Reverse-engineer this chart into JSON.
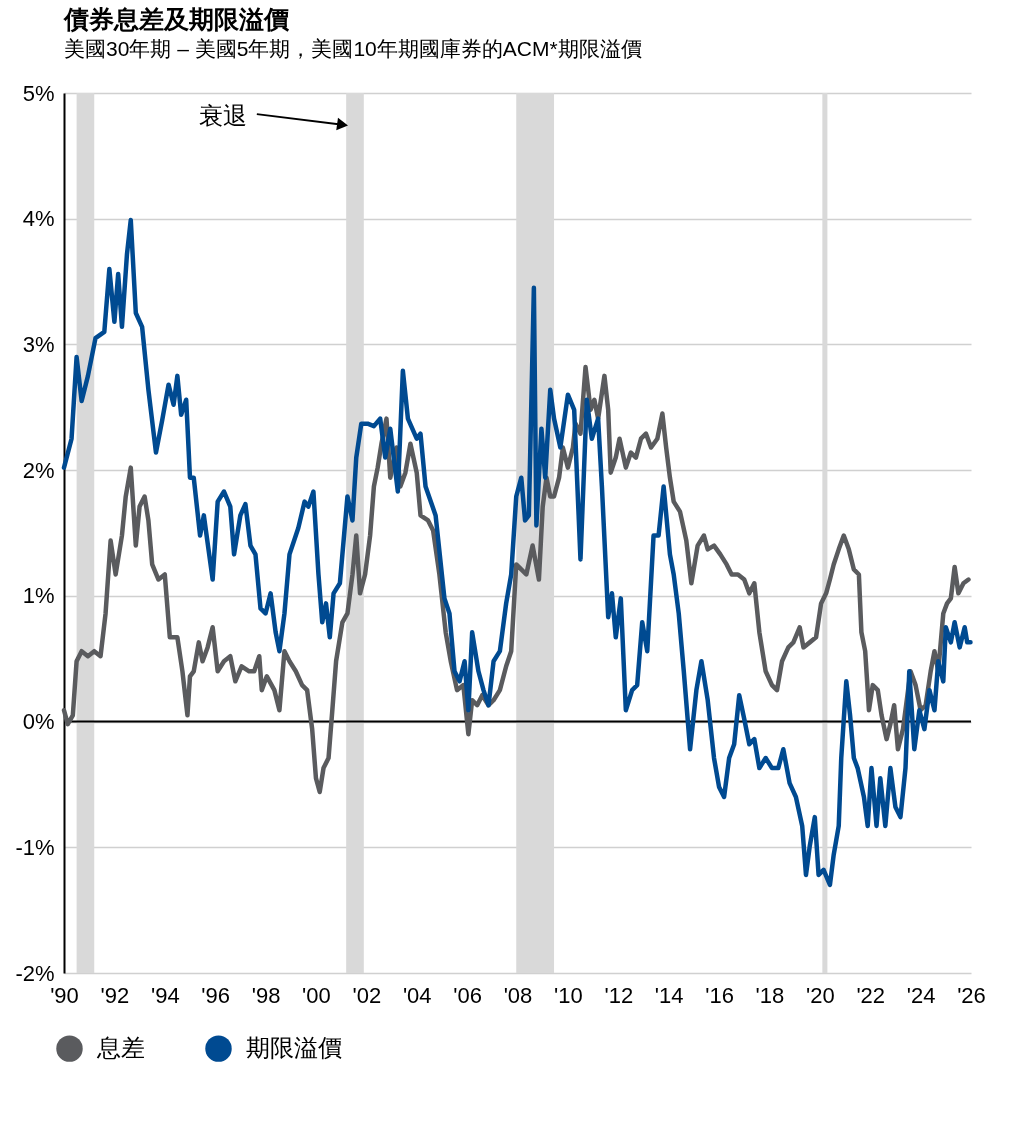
{
  "chart_data": {
    "type": "line",
    "title": "債券息差及期限溢價",
    "subtitle": "美國30年期 – 美國5年期，美國10年期國庫券的ACM*期限溢價",
    "xlim": [
      1990,
      2026
    ],
    "xticks": [
      {
        "value": 1990,
        "label": "'90"
      },
      {
        "value": 1992,
        "label": "'92"
      },
      {
        "value": 1994,
        "label": "'94"
      },
      {
        "value": 1996,
        "label": "'96"
      },
      {
        "value": 1998,
        "label": "'98"
      },
      {
        "value": 2000,
        "label": "'00"
      },
      {
        "value": 2002,
        "label": "'02"
      },
      {
        "value": 2004,
        "label": "'04"
      },
      {
        "value": 2006,
        "label": "'06"
      },
      {
        "value": 2008,
        "label": "'08"
      },
      {
        "value": 2010,
        "label": "'10"
      },
      {
        "value": 2012,
        "label": "'12"
      },
      {
        "value": 2014,
        "label": "'14"
      },
      {
        "value": 2016,
        "label": "'16"
      },
      {
        "value": 2018,
        "label": "'18"
      },
      {
        "value": 2020,
        "label": "'20"
      },
      {
        "value": 2022,
        "label": "'22"
      },
      {
        "value": 2024,
        "label": "'24"
      },
      {
        "value": 2026,
        "label": "'26"
      }
    ],
    "ylim": [
      -2,
      5
    ],
    "yticks": [
      {
        "value": -2,
        "label": "-2%"
      },
      {
        "value": -1,
        "label": "-1%"
      },
      {
        "value": 0,
        "label": "0%"
      },
      {
        "value": 1,
        "label": "1%"
      },
      {
        "value": 2,
        "label": "2%"
      },
      {
        "value": 3,
        "label": "3%"
      },
      {
        "value": 4,
        "label": "4%"
      },
      {
        "value": 5,
        "label": "5%"
      }
    ],
    "grid": "y",
    "legend": "bottom",
    "bands": [
      {
        "axis": "x",
        "from": 1990.5,
        "to": 1991.2,
        "color": "#d9d9d9"
      },
      {
        "axis": "x",
        "from": 2001.2,
        "to": 2001.9,
        "color": "#d9d9d9",
        "label": "衰退"
      },
      {
        "axis": "x",
        "from": 2007.95,
        "to": 2009.45,
        "color": "#d9d9d9"
      },
      {
        "axis": "x",
        "from": 2020.1,
        "to": 2020.3,
        "color": "#d9d9d9"
      }
    ],
    "ref_lines": [
      {
        "axis": "y",
        "value": 0,
        "color": "#000000"
      }
    ],
    "series": [
      {
        "name": "息差",
        "color": "#5a5b5e",
        "x": [
          1990.0,
          1990.15,
          1990.35,
          1990.5,
          1990.7,
          1990.95,
          1991.2,
          1991.45,
          1991.65,
          1991.85,
          1992.05,
          1992.3,
          1992.45,
          1992.65,
          1992.85,
          1993.0,
          1993.2,
          1993.35,
          1993.5,
          1993.75,
          1994.0,
          1994.2,
          1994.5,
          1994.7,
          1994.9,
          1995.0,
          1995.15,
          1995.35,
          1995.5,
          1995.7,
          1995.9,
          1996.1,
          1996.35,
          1996.6,
          1996.8,
          1997.05,
          1997.35,
          1997.55,
          1997.75,
          1997.85,
          1998.05,
          1998.35,
          1998.55,
          1998.75,
          1998.95,
          1999.2,
          1999.45,
          1999.65,
          1999.85,
          2000.0,
          2000.15,
          2000.3,
          2000.5,
          2000.65,
          2000.8,
          2001.05,
          2001.25,
          2001.45,
          2001.6,
          2001.75,
          2001.95,
          2002.15,
          2002.3,
          2002.45,
          2002.6,
          2002.8,
          2002.95,
          2003.2,
          2003.35,
          2003.55,
          2003.75,
          2004.0,
          2004.15,
          2004.45,
          2004.65,
          2004.9,
          2005.15,
          2005.35,
          2005.6,
          2005.85,
          2006.05,
          2006.2,
          2006.4,
          2006.6,
          2006.85,
          2007.05,
          2007.3,
          2007.55,
          2007.75,
          2007.95,
          2008.15,
          2008.35,
          2008.6,
          2008.85,
          2009.0,
          2009.15,
          2009.3,
          2009.45,
          2009.65,
          2009.8,
          2010.0,
          2010.2,
          2010.3,
          2010.5,
          2010.7,
          2010.9,
          2011.05,
          2011.2,
          2011.45,
          2011.6,
          2011.7,
          2011.9,
          2012.05,
          2012.3,
          2012.5,
          2012.7,
          2012.9,
          2013.1,
          2013.3,
          2013.55,
          2013.75,
          2013.9,
          2014.05,
          2014.2,
          2014.45,
          2014.7,
          2014.9,
          2015.15,
          2015.4,
          2015.55,
          2015.8,
          2016.05,
          2016.3,
          2016.5,
          2016.75,
          2017.0,
          2017.2,
          2017.4,
          2017.6,
          2017.85,
          2018.1,
          2018.3,
          2018.5,
          2018.75,
          2018.95,
          2019.2,
          2019.35,
          2019.6,
          2019.85,
          2020.05,
          2020.25,
          2020.4,
          2020.55,
          2020.75,
          2020.95,
          2021.15,
          2021.35,
          2021.55,
          2021.65,
          2021.8,
          2021.95,
          2022.1,
          2022.3,
          2022.45,
          2022.65,
          2022.8,
          2022.95,
          2023.1,
          2023.3,
          2023.45,
          2023.6,
          2023.8,
          2024.0,
          2024.2,
          2024.4,
          2024.55,
          2024.7,
          2024.9,
          2025.05,
          2025.2,
          2025.35,
          2025.5,
          2025.7,
          2025.9
        ],
        "values": [
          0.09,
          -0.02,
          0.05,
          0.48,
          0.56,
          0.52,
          0.56,
          0.52,
          0.86,
          1.44,
          1.17,
          1.48,
          1.79,
          2.02,
          1.4,
          1.71,
          1.79,
          1.6,
          1.25,
          1.13,
          1.17,
          0.67,
          0.67,
          0.4,
          0.05,
          0.36,
          0.4,
          0.63,
          0.48,
          0.59,
          0.75,
          0.4,
          0.48,
          0.52,
          0.32,
          0.44,
          0.4,
          0.4,
          0.52,
          0.25,
          0.36,
          0.25,
          0.09,
          0.56,
          0.48,
          0.4,
          0.29,
          0.25,
          -0.06,
          -0.45,
          -0.56,
          -0.37,
          -0.29,
          0.09,
          0.48,
          0.79,
          0.86,
          1.17,
          1.48,
          1.02,
          1.17,
          1.48,
          1.87,
          2.02,
          2.21,
          2.41,
          1.94,
          2.18,
          1.87,
          1.98,
          2.21,
          1.98,
          1.64,
          1.6,
          1.52,
          1.17,
          0.71,
          0.48,
          0.25,
          0.29,
          -0.1,
          0.17,
          0.13,
          0.21,
          0.13,
          0.17,
          0.25,
          0.44,
          0.56,
          1.25,
          1.21,
          1.17,
          1.4,
          1.13,
          1.71,
          1.94,
          1.79,
          1.79,
          1.94,
          2.18,
          2.02,
          2.18,
          2.37,
          2.29,
          2.82,
          2.48,
          2.56,
          2.41,
          2.75,
          2.48,
          1.98,
          2.1,
          2.25,
          2.02,
          2.14,
          2.1,
          2.25,
          2.29,
          2.18,
          2.25,
          2.45,
          2.18,
          1.94,
          1.75,
          1.67,
          1.44,
          1.1,
          1.4,
          1.48,
          1.37,
          1.4,
          1.33,
          1.25,
          1.17,
          1.17,
          1.13,
          1.02,
          1.1,
          0.71,
          0.4,
          0.29,
          0.25,
          0.48,
          0.59,
          0.63,
          0.75,
          0.59,
          0.63,
          0.67,
          0.94,
          1.02,
          1.13,
          1.25,
          1.37,
          1.48,
          1.37,
          1.21,
          1.17,
          0.71,
          0.56,
          0.09,
          0.29,
          0.25,
          0.05,
          -0.14,
          -0.02,
          0.13,
          -0.22,
          -0.06,
          0.17,
          0.4,
          0.29,
          0.09,
          0.13,
          0.4,
          0.56,
          0.4,
          0.86,
          0.94,
          0.98,
          1.23,
          1.02,
          1.1,
          1.13
        ]
      },
      {
        "name": "期限溢價",
        "color": "#004a91",
        "x": [
          1990.0,
          1990.3,
          1990.5,
          1990.7,
          1990.95,
          1991.25,
          1991.6,
          1991.8,
          1992.0,
          1992.15,
          1992.3,
          1992.5,
          1992.65,
          1992.85,
          1993.1,
          1993.35,
          1993.65,
          1993.9,
          1994.15,
          1994.35,
          1994.5,
          1994.65,
          1994.85,
          1995.0,
          1995.15,
          1995.4,
          1995.55,
          1995.9,
          1996.1,
          1996.35,
          1996.6,
          1996.75,
          1997.0,
          1997.2,
          1997.4,
          1997.6,
          1997.8,
          1998.0,
          1998.2,
          1998.4,
          1998.55,
          1998.75,
          1998.95,
          1999.3,
          1999.55,
          1999.7,
          1999.9,
          2000.1,
          2000.25,
          2000.4,
          2000.55,
          2000.7,
          2000.95,
          2001.25,
          2001.45,
          2001.6,
          2001.8,
          2002.05,
          2002.3,
          2002.55,
          2002.75,
          2002.95,
          2003.25,
          2003.45,
          2003.65,
          2004.0,
          2004.15,
          2004.35,
          2004.75,
          2005.1,
          2005.3,
          2005.5,
          2005.7,
          2005.9,
          2006.05,
          2006.2,
          2006.45,
          2006.65,
          2006.85,
          2007.05,
          2007.3,
          2007.55,
          2007.75,
          2007.95,
          2008.15,
          2008.3,
          2008.45,
          2008.65,
          2008.75,
          2008.95,
          2009.1,
          2009.3,
          2009.45,
          2009.7,
          2010.0,
          2010.25,
          2010.5,
          2010.75,
          2010.95,
          2011.2,
          2011.35,
          2011.6,
          2011.75,
          2011.9,
          2012.1,
          2012.3,
          2012.55,
          2012.75,
          2012.95,
          2013.15,
          2013.4,
          2013.6,
          2013.8,
          2014.05,
          2014.2,
          2014.4,
          2014.6,
          2014.85,
          2015.1,
          2015.3,
          2015.55,
          2015.8,
          2016.0,
          2016.2,
          2016.4,
          2016.6,
          2016.8,
          2017.0,
          2017.2,
          2017.4,
          2017.6,
          2017.85,
          2018.1,
          2018.35,
          2018.55,
          2018.8,
          2019.05,
          2019.3,
          2019.45,
          2019.6,
          2019.8,
          2019.95,
          2020.15,
          2020.4,
          2020.55,
          2020.75,
          2020.85,
          2021.05,
          2021.2,
          2021.35,
          2021.5,
          2021.75,
          2021.9,
          2022.05,
          2022.25,
          2022.4,
          2022.6,
          2022.8,
          2023.0,
          2023.2,
          2023.4,
          2023.55,
          2023.75,
          2023.95,
          2024.15,
          2024.35,
          2024.55,
          2024.7,
          2024.9,
          2025.0,
          2025.2,
          2025.35,
          2025.55,
          2025.75,
          2025.85,
          2025.98
        ],
        "values": [
          2.02,
          2.25,
          2.9,
          2.55,
          2.75,
          3.05,
          3.1,
          3.6,
          3.18,
          3.56,
          3.14,
          3.72,
          3.99,
          3.25,
          3.14,
          2.64,
          2.14,
          2.4,
          2.68,
          2.52,
          2.75,
          2.44,
          2.56,
          1.94,
          1.94,
          1.48,
          1.64,
          1.13,
          1.75,
          1.83,
          1.71,
          1.33,
          1.64,
          1.73,
          1.4,
          1.33,
          0.9,
          0.86,
          1.02,
          0.71,
          0.56,
          0.86,
          1.33,
          1.54,
          1.75,
          1.71,
          1.83,
          1.17,
          0.79,
          0.94,
          0.67,
          1.02,
          1.1,
          1.79,
          1.6,
          2.1,
          2.37,
          2.37,
          2.35,
          2.41,
          2.1,
          2.33,
          1.83,
          2.79,
          2.41,
          2.25,
          2.29,
          1.87,
          1.64,
          0.98,
          0.86,
          0.4,
          0.32,
          0.48,
          0.09,
          0.71,
          0.4,
          0.25,
          0.13,
          0.48,
          0.56,
          0.94,
          1.17,
          1.79,
          1.94,
          1.6,
          1.64,
          3.45,
          1.56,
          2.33,
          1.94,
          2.64,
          2.41,
          2.18,
          2.6,
          2.48,
          1.29,
          2.56,
          2.25,
          2.41,
          1.87,
          0.83,
          1.02,
          0.67,
          0.98,
          0.09,
          0.25,
          0.29,
          0.79,
          0.56,
          1.48,
          1.48,
          1.87,
          1.33,
          1.17,
          0.86,
          0.4,
          -0.22,
          0.25,
          0.48,
          0.17,
          -0.29,
          -0.52,
          -0.6,
          -0.29,
          -0.18,
          0.21,
          0.02,
          -0.18,
          -0.14,
          -0.37,
          -0.29,
          -0.37,
          -0.37,
          -0.22,
          -0.49,
          -0.6,
          -0.83,
          -1.22,
          -0.99,
          -0.76,
          -1.22,
          -1.18,
          -1.3,
          -1.06,
          -0.83,
          -0.29,
          0.32,
          0.05,
          -0.29,
          -0.37,
          -0.6,
          -0.83,
          -0.37,
          -0.83,
          -0.45,
          -0.83,
          -0.37,
          -0.68,
          -0.76,
          -0.37,
          0.4,
          -0.22,
          0.09,
          -0.06,
          0.25,
          0.09,
          0.48,
          0.32,
          0.75,
          0.63,
          0.79,
          0.59,
          0.75,
          0.63,
          0.63
        ]
      }
    ]
  }
}
